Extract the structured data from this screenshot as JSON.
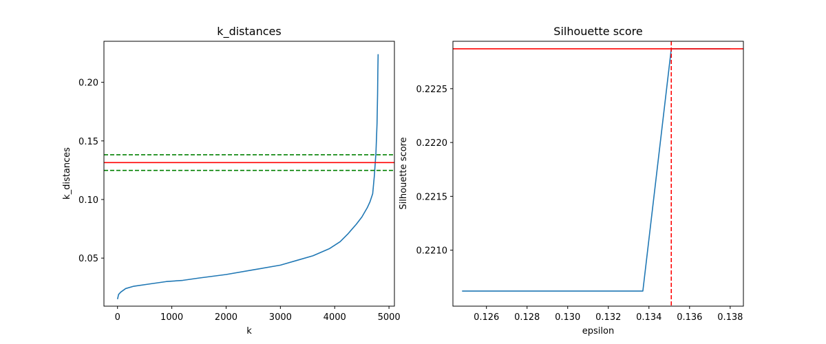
{
  "chart_data": [
    {
      "type": "line",
      "title": "k_distances",
      "xlabel": "k",
      "ylabel": "k_distances",
      "xlim": [
        -250,
        5100
      ],
      "ylim": [
        0.009,
        0.235
      ],
      "xticks": [
        0,
        1000,
        2000,
        3000,
        4000,
        5000
      ],
      "xtick_labels": [
        "0",
        "1000",
        "2000",
        "3000",
        "4000",
        "5000"
      ],
      "yticks": [
        0.05,
        0.1,
        0.15,
        0.2
      ],
      "ytick_labels": [
        "0.05",
        "0.10",
        "0.15",
        "0.20"
      ],
      "grid": false,
      "series": [
        {
          "color": "#1f77b4",
          "x": [
            0,
            20,
            60,
            150,
            300,
            600,
            900,
            1200,
            1500,
            2000,
            2500,
            3000,
            3300,
            3600,
            3900,
            4100,
            4250,
            4400,
            4500,
            4600,
            4650,
            4700,
            4730,
            4760,
            4780,
            4790,
            4795,
            4800
          ],
          "y": [
            0.015,
            0.019,
            0.021,
            0.024,
            0.026,
            0.028,
            0.03,
            0.031,
            0.033,
            0.036,
            0.04,
            0.044,
            0.048,
            0.052,
            0.058,
            0.064,
            0.071,
            0.079,
            0.085,
            0.093,
            0.098,
            0.105,
            0.12,
            0.14,
            0.165,
            0.19,
            0.21,
            0.224
          ]
        }
      ],
      "hlines": [
        {
          "y": 0.1315,
          "color": "#ff0000",
          "style": "solid"
        },
        {
          "y": 0.1382,
          "color": "#008000",
          "style": "dashed"
        },
        {
          "y": 0.1248,
          "color": "#008000",
          "style": "dashed"
        }
      ]
    },
    {
      "type": "line",
      "title": "Silhouette score",
      "xlabel": "epsilon",
      "ylabel": "Silhouette score",
      "xlim": [
        0.12435,
        0.13865
      ],
      "ylim": [
        0.22048,
        0.22294
      ],
      "xticks": [
        0.126,
        0.128,
        0.13,
        0.132,
        0.134,
        0.136,
        0.138
      ],
      "xtick_labels": [
        "0.126",
        "0.128",
        "0.130",
        "0.132",
        "0.134",
        "0.136",
        "0.138"
      ],
      "yticks": [
        0.221,
        0.2215,
        0.222,
        0.2225
      ],
      "ytick_labels": [
        "0.2210",
        "0.2215",
        "0.2220",
        "0.2225"
      ],
      "grid": false,
      "series": [
        {
          "color": "#1f77b4",
          "x": [
            0.1248,
            0.1337,
            0.1351,
            0.138
          ],
          "y": [
            0.22062,
            0.22062,
            0.22287,
            0.22287
          ]
        }
      ],
      "hlines": [
        {
          "y": 0.22287,
          "color": "#ff0000",
          "style": "solid"
        }
      ],
      "vlines": [
        {
          "x": 0.1351,
          "color": "#ff0000",
          "style": "dashed"
        }
      ]
    }
  ]
}
